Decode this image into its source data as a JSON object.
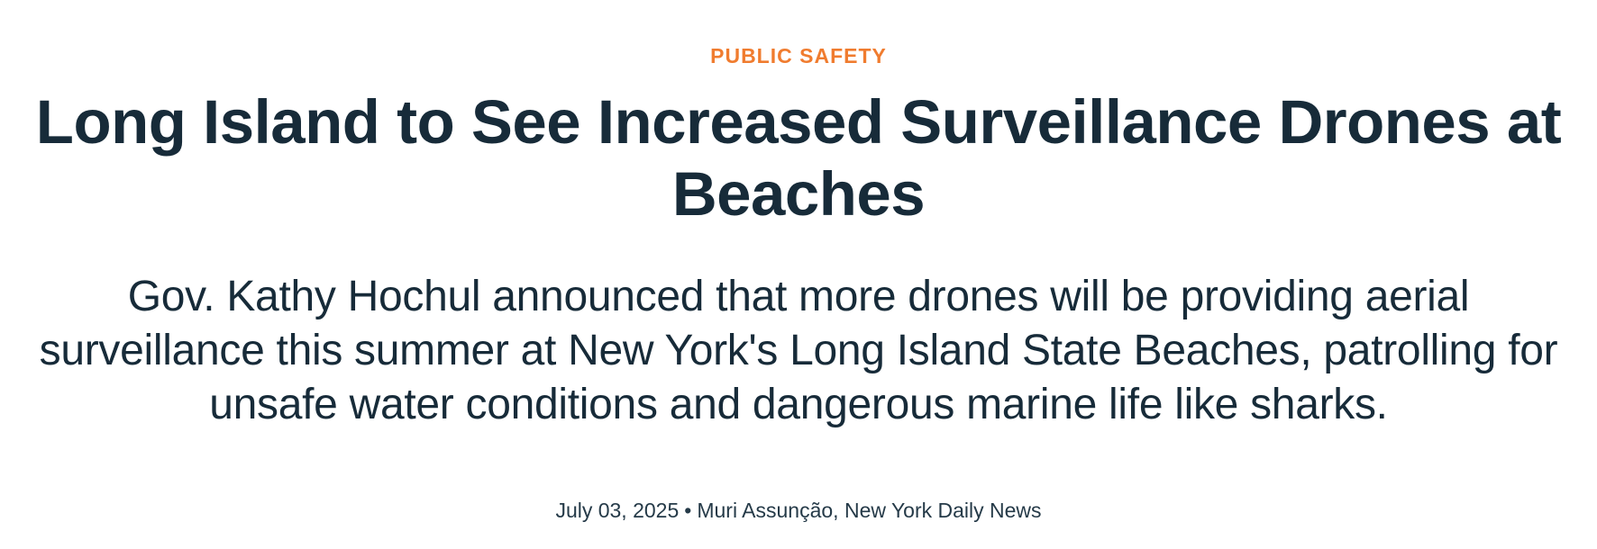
{
  "article": {
    "category": "PUBLIC SAFETY",
    "headline": "Long Island to See Increased Surveillance Drones at Beaches",
    "subheadline": "Gov. Kathy Hochul announced that more drones will be providing aerial surveillance this summer at New York's Long Island State Beaches, patrolling for unsafe water conditions and dangerous marine life like sharks.",
    "date": "July 03, 2025",
    "separator": "•",
    "byline": "Muri Assunção, New York Daily News"
  },
  "colors": {
    "category": "#f07c2f",
    "text": "#172b39",
    "background": "#ffffff"
  }
}
